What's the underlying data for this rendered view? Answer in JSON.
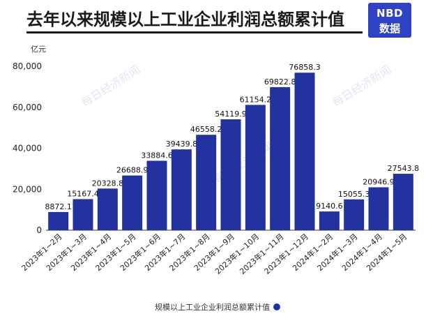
{
  "header": {
    "title": "去年以来规模以上工业企业利润总额累计值",
    "logo_top": "NBD",
    "logo_bottom": "数据"
  },
  "watermark": "每日经济新闻",
  "colors": {
    "bar": "#2233a0",
    "legend_dot": "#2233a0",
    "accent": "#2f42c4"
  },
  "chart_data": {
    "type": "bar",
    "unit_label": "亿元",
    "categories": [
      "2023年1~2月",
      "2023年1~3月",
      "2023年1~4月",
      "2023年1~5月",
      "2023年1~6月",
      "2023年1~7月",
      "2023年1~8月",
      "2023年1~9月",
      "2023年1~10月",
      "2023年1~11月",
      "2023年1~12月",
      "2024年1~2月",
      "2024年1~3月",
      "2024年1~4月",
      "2024年1~5月"
    ],
    "series": [
      {
        "name": "规模以上工业企业利润总额累计值",
        "values": [
          8872.1,
          15167.4,
          20328.8,
          26688.9,
          33884.6,
          39439.8,
          46558.2,
          54119.9,
          61154.2,
          69822.8,
          76858.3,
          9140.6,
          15055.3,
          20946.9,
          27543.8
        ],
        "labels": [
          "8872.1",
          "15167.4",
          "20328.8",
          "26688.9",
          "33884.6",
          "39439.8",
          "46558.2",
          "54119.9",
          "61154.2",
          "69822.8",
          "76858.3",
          "9140.6",
          "15055.3",
          "20946.9",
          "27543.8"
        ]
      }
    ],
    "ylim": [
      0,
      80000
    ],
    "yticks": [
      "0",
      "20,000",
      "40,000",
      "60,000",
      "80,000"
    ],
    "ytick_values": [
      0,
      20000,
      40000,
      60000,
      80000
    ],
    "legend_position": "bottom-center",
    "grid": false
  }
}
